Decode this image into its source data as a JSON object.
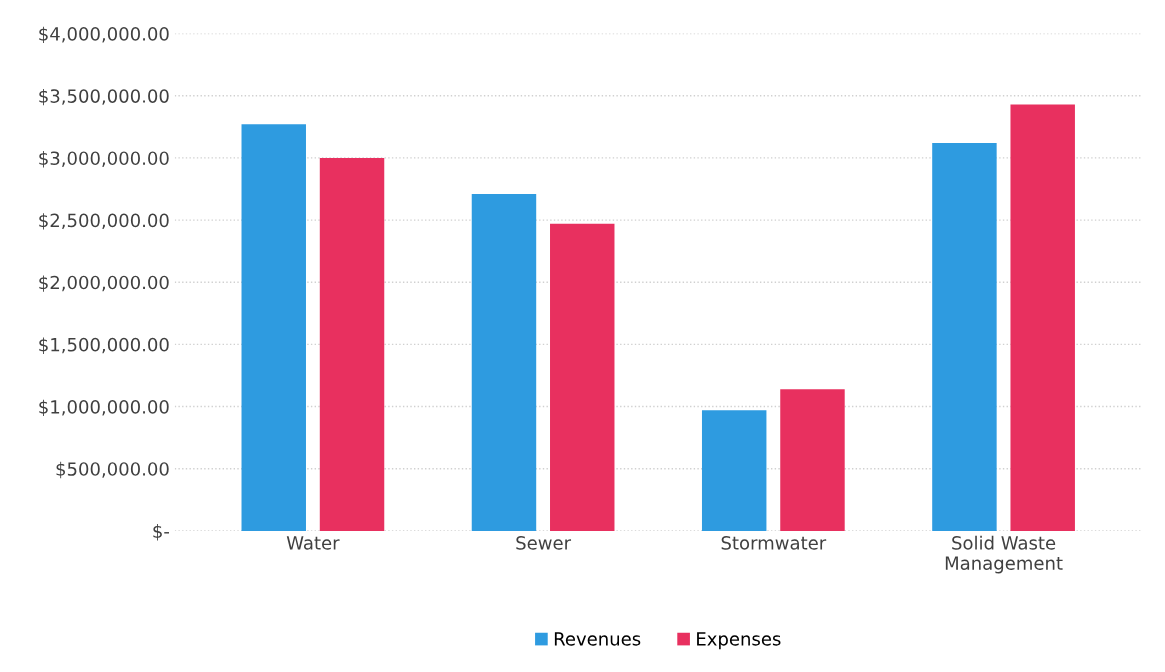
{
  "chart_data": {
    "type": "bar",
    "categories": [
      "Water",
      "Sewer",
      "Stormwater",
      "Solid Waste\nManagement"
    ],
    "series": [
      {
        "name": "Revenues",
        "color": "#2e9be0",
        "values": [
          3270000,
          2710000,
          970000,
          3120000
        ]
      },
      {
        "name": "Expenses",
        "color": "#e8305f",
        "values": [
          3000000,
          2470000,
          1140000,
          3430000
        ]
      }
    ],
    "ylim": [
      0,
      4000000
    ],
    "yticks": [
      {
        "value": 0,
        "label": "$-"
      },
      {
        "value": 500000,
        "label": "$500,000.00"
      },
      {
        "value": 1000000,
        "label": "$1,000,000.00"
      },
      {
        "value": 1500000,
        "label": "$1,500,000.00"
      },
      {
        "value": 2000000,
        "label": "$2,000,000.00"
      },
      {
        "value": 2500000,
        "label": "$2,500,000.00"
      },
      {
        "value": 3000000,
        "label": "$3,000,000.00"
      },
      {
        "value": 3500000,
        "label": "$3,500,000.00"
      },
      {
        "value": 4000000,
        "label": "$4,000,000.00"
      }
    ],
    "grid": "y",
    "legend": "bottom"
  }
}
